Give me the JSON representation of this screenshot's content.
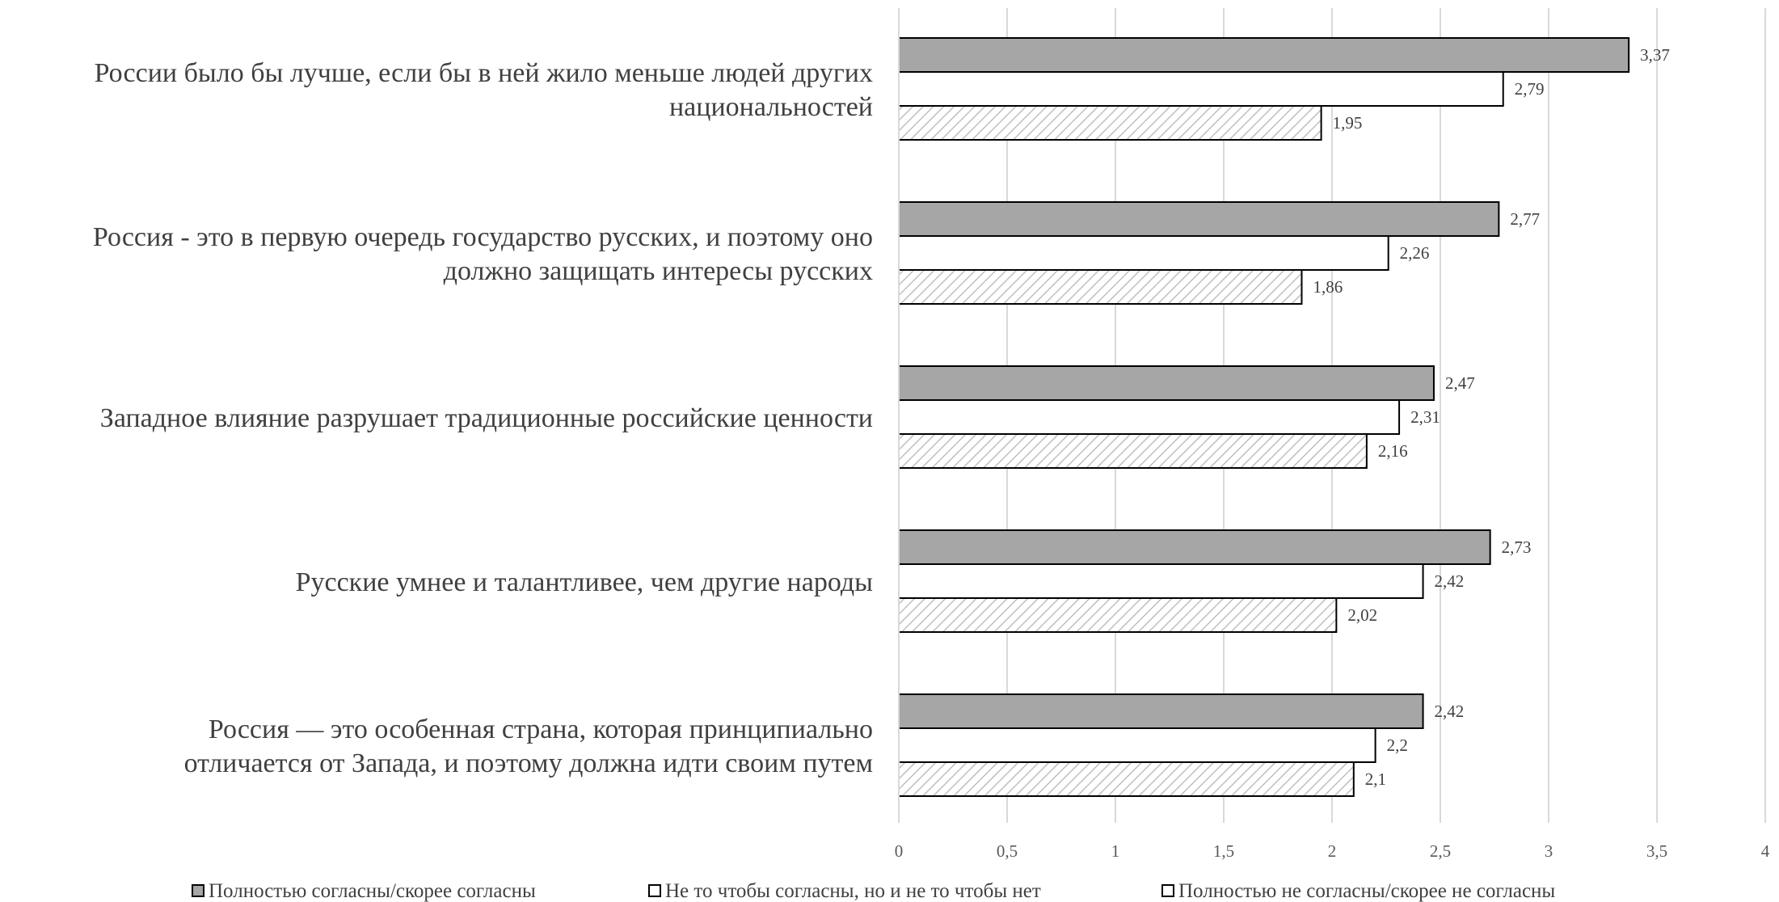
{
  "chart_data": {
    "type": "bar",
    "orientation": "horizontal",
    "categories": [
      [
        "России было бы лучше, если бы в ней жило меньше людей других",
        "национальностей"
      ],
      [
        "Россия - это в первую очередь государство русских, и поэтому оно",
        "должно защищать интересы русских"
      ],
      [
        "Западное влияние разрушает традиционные российские ценности"
      ],
      [
        "Русские умнее и талантливее, чем другие народы"
      ],
      [
        "Россия — это особенная страна, которая принципиально",
        "отличается от Запада, и поэтому должна идти своим путем"
      ]
    ],
    "series": [
      {
        "name": "Полностью согласны/скорее согласны",
        "values": [
          3.37,
          2.77,
          2.47,
          2.73,
          2.42
        ],
        "labels": [
          "3,37",
          "2,77",
          "2,47",
          "2,73",
          "2,42"
        ],
        "fill": "#a6a6a6",
        "pattern": "solid"
      },
      {
        "name": "Не то чтобы согласны, но и не то чтобы нет",
        "values": [
          2.79,
          2.26,
          2.31,
          2.42,
          2.2
        ],
        "labels": [
          "2,79",
          "2,26",
          "2,31",
          "2,42",
          "2,2"
        ],
        "fill": "#ffffff",
        "pattern": "solid"
      },
      {
        "name": "Полностью не согласны/скорее не согласны",
        "values": [
          1.95,
          1.86,
          2.16,
          2.02,
          2.1
        ],
        "labels": [
          "1,95",
          "1,86",
          "2,16",
          "2,02",
          "2,1"
        ],
        "fill": "#ffffff",
        "pattern": "diagonal-hatch"
      }
    ],
    "x_ticks": [
      0,
      0.5,
      1,
      1.5,
      2,
      2.5,
      3,
      3.5,
      4
    ],
    "x_tick_labels": [
      "0",
      "0,5",
      "1",
      "1,5",
      "2",
      "2,5",
      "3",
      "3,5",
      "4"
    ],
    "xlim": [
      0,
      4
    ],
    "grid": true,
    "legend_position": "bottom",
    "title": "",
    "xlabel": "",
    "ylabel": ""
  }
}
